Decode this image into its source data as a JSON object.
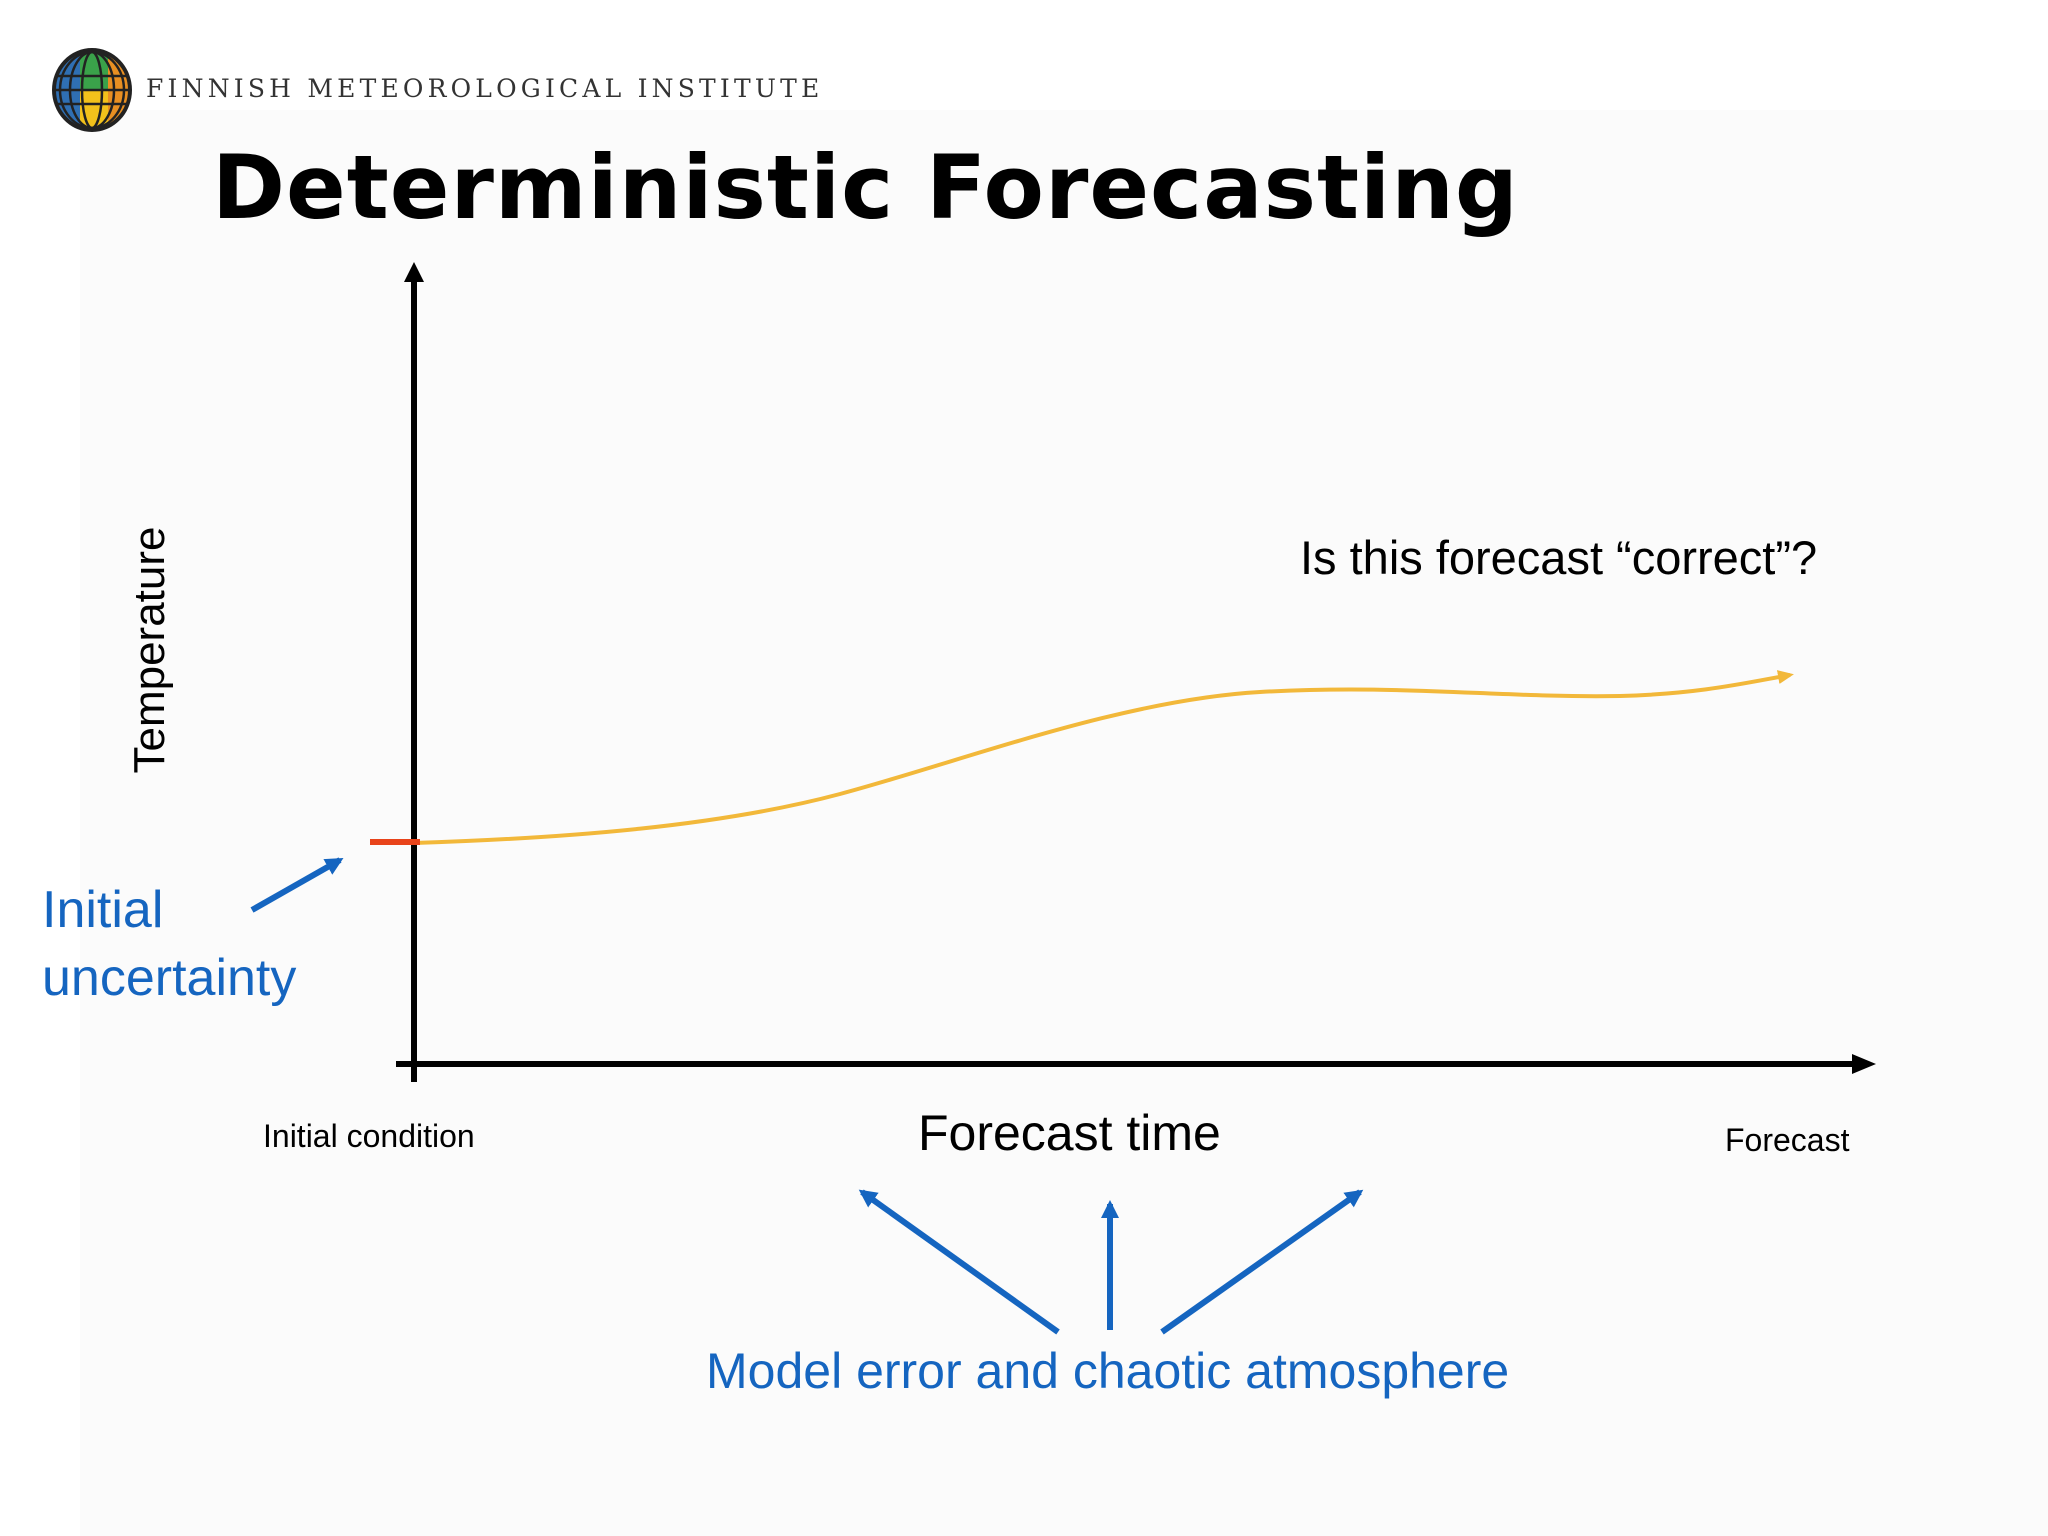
{
  "header": {
    "organization": "FINNISH METEOROLOGICAL INSTITUTE",
    "title": "Deterministic Forecasting"
  },
  "diagram": {
    "y_axis_label": "Temperature",
    "x_axis_label": "Forecast time",
    "x_start_label": "Initial condition",
    "x_end_label": "Forecast",
    "question": "Is this forecast “correct”?",
    "initial_uncertainty_label": [
      "Initial",
      "uncertainty"
    ],
    "model_error_label": "Model error and chaotic atmosphere"
  },
  "colors": {
    "forecast_curve": "#f2b83a",
    "initial_mark": "#e8431a",
    "annotation": "#1565c0",
    "axis": "#000000"
  }
}
